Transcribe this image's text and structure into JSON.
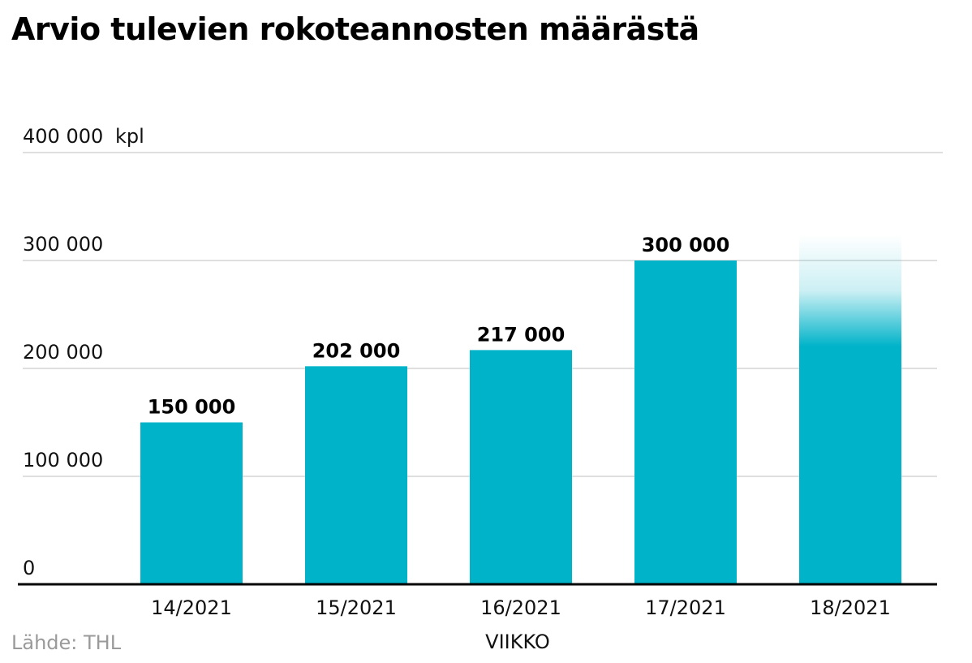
{
  "chart_data": {
    "type": "bar",
    "title": "Arvio tulevien rokoteannosten määrästä",
    "unit": "kpl",
    "xlabel": "VIIKKO",
    "ylabel": "",
    "ylim": [
      0,
      400000
    ],
    "yticks": [
      {
        "value": 0,
        "label": "0"
      },
      {
        "value": 100000,
        "label": "100 000"
      },
      {
        "value": 200000,
        "label": "200 000"
      },
      {
        "value": 300000,
        "label": "300 000"
      },
      {
        "value": 400000,
        "label": "400 000"
      }
    ],
    "categories": [
      "14/2021",
      "15/2021",
      "16/2021",
      "17/2021",
      "18/2021"
    ],
    "values": [
      150000,
      202000,
      217000,
      300000,
      300000
    ],
    "value_labels": [
      "150 000",
      "202 000",
      "217 000",
      "300 000",
      ""
    ],
    "estimated_last": true,
    "grid": true,
    "colors": {
      "bar": "#00b3c9",
      "grid": "#cccccc",
      "axis": "#000000"
    }
  },
  "source": "Lähde: THL"
}
